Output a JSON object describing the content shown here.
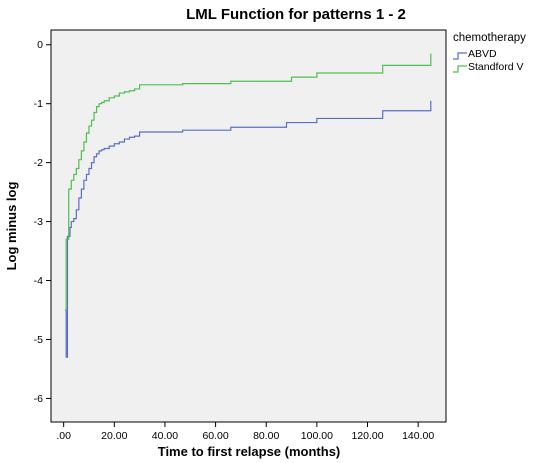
{
  "chart_data": {
    "type": "line",
    "step": true,
    "title": "LML Function for patterns 1 - 2",
    "xlabel": "Time to first relapse (months)",
    "ylabel": "Log minus log",
    "xlim": [
      -5,
      151
    ],
    "ylim": [
      -6.4,
      0.25
    ],
    "x_ticks": [
      0,
      20,
      40,
      60,
      80,
      100,
      120,
      140
    ],
    "x_tick_labels": [
      ".00",
      "20.00",
      "40.00",
      "60.00",
      "80.00",
      "100.00",
      "120.00",
      "140.00"
    ],
    "y_ticks": [
      0,
      -1,
      -2,
      -3,
      -4,
      -5,
      -6
    ],
    "y_tick_labels": [
      "0",
      "-1",
      "-2",
      "-3",
      "-4",
      "-5",
      "-6"
    ],
    "legend_title": "chemotherapy",
    "legend_position": "right",
    "grid": false,
    "plot_background": "#f0f0f0",
    "series": [
      {
        "name": "ABVD",
        "color": "#5a6fc4",
        "x": [
          0.5,
          1,
          1.5,
          2,
          2.5,
          3,
          4,
          5,
          6,
          7,
          8,
          9,
          10,
          11,
          12,
          13,
          14,
          15,
          16,
          18,
          20,
          22,
          24,
          26,
          28,
          30,
          47,
          66,
          88,
          100,
          126,
          145
        ],
        "y": [
          -4.5,
          -5.3,
          -3.25,
          -3.25,
          -3.1,
          -3.0,
          -2.95,
          -2.8,
          -2.6,
          -2.45,
          -2.3,
          -2.2,
          -2.1,
          -2.0,
          -1.9,
          -1.85,
          -1.8,
          -1.78,
          -1.76,
          -1.72,
          -1.68,
          -1.65,
          -1.6,
          -1.57,
          -1.55,
          -1.48,
          -1.45,
          -1.4,
          -1.32,
          -1.25,
          -1.12,
          -0.95
        ]
      },
      {
        "name": "Standford V",
        "color": "#4fbf4f",
        "x": [
          0.5,
          1,
          2,
          3,
          4,
          5,
          6,
          7,
          8,
          9,
          10,
          11,
          12,
          13,
          14,
          15,
          16,
          18,
          20,
          22,
          24,
          26,
          28,
          30,
          47,
          66,
          90,
          100,
          126,
          145
        ],
        "y": [
          -4.5,
          -3.3,
          -2.45,
          -2.3,
          -2.2,
          -2.1,
          -1.95,
          -1.8,
          -1.65,
          -1.5,
          -1.38,
          -1.28,
          -1.15,
          -1.05,
          -1.0,
          -0.98,
          -0.95,
          -0.9,
          -0.87,
          -0.82,
          -0.8,
          -0.78,
          -0.75,
          -0.68,
          -0.66,
          -0.62,
          -0.55,
          -0.48,
          -0.35,
          -0.15
        ]
      }
    ]
  }
}
